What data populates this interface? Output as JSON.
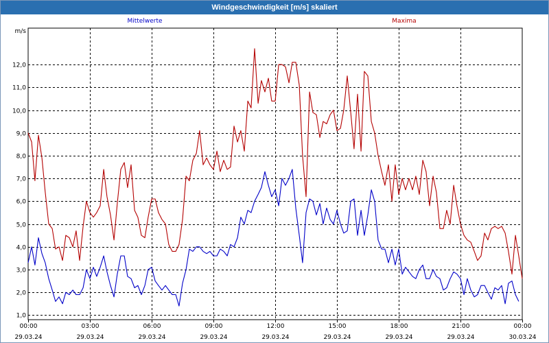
{
  "window": {
    "title": "Windgeschwindigkeit [m/s] skaliert"
  },
  "colors": {
    "titlebar": "#2a6fb0",
    "mean": "#0000c8",
    "max": "#b40000",
    "grid": "#000000"
  },
  "chart_data": {
    "type": "line",
    "yunit": "m/s",
    "ylim": [
      0.8,
      13.6
    ],
    "yticks": [
      1,
      2,
      3,
      4,
      5,
      6,
      7,
      8,
      9,
      10,
      11,
      12
    ],
    "ytick_labels": [
      "1,0",
      "2,0",
      "3,0",
      "4,0",
      "5,0",
      "6,0",
      "7,0",
      "8,0",
      "9,0",
      "10,0",
      "11,0",
      "12,0"
    ],
    "xlim_hours": [
      0,
      24
    ],
    "xticks": [
      {
        "hour": 0,
        "time": "00:00",
        "date": "29.03.24"
      },
      {
        "hour": 3,
        "time": "03:00",
        "date": "29.03.24"
      },
      {
        "hour": 6,
        "time": "06:00",
        "date": "29.03.24"
      },
      {
        "hour": 9,
        "time": "09:00",
        "date": "29.03.24"
      },
      {
        "hour": 12,
        "time": "12:00",
        "date": "29.03.24"
      },
      {
        "hour": 15,
        "time": "15:00",
        "date": "29.03.24"
      },
      {
        "hour": 18,
        "time": "18:00",
        "date": "29.03.24"
      },
      {
        "hour": 21,
        "time": "21:00",
        "date": "29.03.24"
      },
      {
        "hour": 24,
        "time": "00:00",
        "date": "30.03.24"
      }
    ],
    "grid": true,
    "series": [
      {
        "name": "Mittelwerte",
        "color": "#0000c8",
        "points": [
          [
            0,
            3.3
          ],
          [
            0.17,
            4.0
          ],
          [
            0.33,
            3.2
          ],
          [
            0.5,
            4.4
          ],
          [
            0.67,
            3.7
          ],
          [
            0.83,
            3.3
          ],
          [
            1,
            2.6
          ],
          [
            1.17,
            2.1
          ],
          [
            1.33,
            1.6
          ],
          [
            1.5,
            1.8
          ],
          [
            1.67,
            1.5
          ],
          [
            1.83,
            2.0
          ],
          [
            2,
            1.9
          ],
          [
            2.17,
            2.1
          ],
          [
            2.33,
            1.9
          ],
          [
            2.5,
            1.9
          ],
          [
            2.67,
            2.2
          ],
          [
            2.83,
            3.0
          ],
          [
            3,
            2.6
          ],
          [
            3.17,
            3.1
          ],
          [
            3.33,
            2.7
          ],
          [
            3.5,
            3.1
          ],
          [
            3.67,
            3.6
          ],
          [
            3.83,
            2.9
          ],
          [
            4,
            2.3
          ],
          [
            4.17,
            1.8
          ],
          [
            4.33,
            2.8
          ],
          [
            4.5,
            3.6
          ],
          [
            4.67,
            3.6
          ],
          [
            4.83,
            2.7
          ],
          [
            5,
            2.6
          ],
          [
            5.17,
            2.2
          ],
          [
            5.33,
            2.3
          ],
          [
            5.5,
            1.9
          ],
          [
            5.67,
            2.3
          ],
          [
            5.83,
            3.0
          ],
          [
            6,
            3.1
          ],
          [
            6.17,
            2.5
          ],
          [
            6.33,
            2.3
          ],
          [
            6.5,
            2.1
          ],
          [
            6.67,
            2.3
          ],
          [
            6.83,
            2.1
          ],
          [
            7,
            1.9
          ],
          [
            7.17,
            1.9
          ],
          [
            7.33,
            1.4
          ],
          [
            7.5,
            2.4
          ],
          [
            7.67,
            3.0
          ],
          [
            7.83,
            3.9
          ],
          [
            8,
            3.8
          ],
          [
            8.17,
            4.0
          ],
          [
            8.33,
            4.0
          ],
          [
            8.5,
            3.8
          ],
          [
            8.67,
            3.7
          ],
          [
            8.83,
            3.8
          ],
          [
            9,
            3.6
          ],
          [
            9.17,
            3.6
          ],
          [
            9.33,
            3.9
          ],
          [
            9.5,
            3.8
          ],
          [
            9.67,
            3.6
          ],
          [
            9.83,
            4.1
          ],
          [
            10,
            4.0
          ],
          [
            10.17,
            4.4
          ],
          [
            10.33,
            5.3
          ],
          [
            10.5,
            5.0
          ],
          [
            10.67,
            5.6
          ],
          [
            10.83,
            5.5
          ],
          [
            11,
            6.0
          ],
          [
            11.17,
            6.3
          ],
          [
            11.33,
            6.6
          ],
          [
            11.5,
            7.3
          ],
          [
            11.67,
            6.7
          ],
          [
            11.83,
            6.2
          ],
          [
            12,
            6.5
          ],
          [
            12.17,
            5.8
          ],
          [
            12.33,
            7.0
          ],
          [
            12.5,
            6.7
          ],
          [
            12.67,
            7.0
          ],
          [
            12.83,
            7.4
          ],
          [
            13,
            5.7
          ],
          [
            13.17,
            4.5
          ],
          [
            13.33,
            3.3
          ],
          [
            13.5,
            5.5
          ],
          [
            13.67,
            6.1
          ],
          [
            13.83,
            6.0
          ],
          [
            14,
            5.4
          ],
          [
            14.17,
            5.9
          ],
          [
            14.33,
            5.0
          ],
          [
            14.5,
            5.7
          ],
          [
            14.67,
            5.2
          ],
          [
            14.83,
            5.0
          ],
          [
            15,
            5.6
          ],
          [
            15.17,
            5.0
          ],
          [
            15.33,
            4.6
          ],
          [
            15.5,
            4.7
          ],
          [
            15.67,
            6.0
          ],
          [
            15.83,
            6.1
          ],
          [
            16,
            4.5
          ],
          [
            16.17,
            5.6
          ],
          [
            16.33,
            4.5
          ],
          [
            16.5,
            5.4
          ],
          [
            16.67,
            6.5
          ],
          [
            16.83,
            6.0
          ],
          [
            17,
            4.3
          ],
          [
            17.17,
            3.9
          ],
          [
            17.33,
            3.9
          ],
          [
            17.5,
            3.3
          ],
          [
            17.67,
            3.9
          ],
          [
            17.83,
            3.2
          ],
          [
            18,
            3.9
          ],
          [
            18.17,
            2.8
          ],
          [
            18.33,
            3.1
          ],
          [
            18.5,
            2.9
          ],
          [
            18.67,
            2.7
          ],
          [
            18.83,
            2.6
          ],
          [
            19,
            3.0
          ],
          [
            19.17,
            3.2
          ],
          [
            19.33,
            2.6
          ],
          [
            19.5,
            2.6
          ],
          [
            19.67,
            3.0
          ],
          [
            19.83,
            2.7
          ],
          [
            20,
            2.6
          ],
          [
            20.17,
            2.1
          ],
          [
            20.33,
            2.2
          ],
          [
            20.5,
            2.6
          ],
          [
            20.67,
            2.9
          ],
          [
            20.83,
            2.8
          ],
          [
            21,
            2.6
          ],
          [
            21.17,
            1.9
          ],
          [
            21.33,
            2.6
          ],
          [
            21.5,
            2.1
          ],
          [
            21.67,
            1.8
          ],
          [
            21.83,
            1.9
          ],
          [
            22,
            2.3
          ],
          [
            22.17,
            2.3
          ],
          [
            22.33,
            2.0
          ],
          [
            22.5,
            1.7
          ],
          [
            22.67,
            2.2
          ],
          [
            22.83,
            2.1
          ],
          [
            23,
            2.3
          ],
          [
            23.17,
            1.5
          ],
          [
            23.33,
            2.4
          ],
          [
            23.5,
            2.5
          ],
          [
            23.67,
            1.9
          ],
          [
            23.83,
            1.6
          ]
        ]
      },
      {
        "name": "Maxima",
        "color": "#b40000",
        "points": [
          [
            0,
            9.0
          ],
          [
            0.17,
            8.6
          ],
          [
            0.33,
            6.9
          ],
          [
            0.5,
            8.9
          ],
          [
            0.67,
            7.9
          ],
          [
            0.83,
            6.4
          ],
          [
            1,
            5.0
          ],
          [
            1.17,
            4.8
          ],
          [
            1.33,
            3.9
          ],
          [
            1.5,
            4.0
          ],
          [
            1.67,
            3.4
          ],
          [
            1.83,
            4.5
          ],
          [
            2,
            4.4
          ],
          [
            2.17,
            4.0
          ],
          [
            2.33,
            4.7
          ],
          [
            2.5,
            3.4
          ],
          [
            2.67,
            4.9
          ],
          [
            2.83,
            6.0
          ],
          [
            3,
            5.5
          ],
          [
            3.17,
            5.3
          ],
          [
            3.33,
            5.5
          ],
          [
            3.5,
            5.8
          ],
          [
            3.67,
            7.4
          ],
          [
            3.83,
            6.2
          ],
          [
            4,
            5.4
          ],
          [
            4.17,
            4.3
          ],
          [
            4.33,
            5.9
          ],
          [
            4.5,
            7.4
          ],
          [
            4.67,
            7.7
          ],
          [
            4.83,
            6.6
          ],
          [
            5,
            7.6
          ],
          [
            5.17,
            5.6
          ],
          [
            5.33,
            5.3
          ],
          [
            5.5,
            4.5
          ],
          [
            5.67,
            4.4
          ],
          [
            5.83,
            5.3
          ],
          [
            6,
            6.1
          ],
          [
            6.17,
            6.1
          ],
          [
            6.33,
            5.5
          ],
          [
            6.5,
            5.2
          ],
          [
            6.67,
            5.0
          ],
          [
            6.83,
            4.1
          ],
          [
            7,
            3.8
          ],
          [
            7.17,
            3.8
          ],
          [
            7.33,
            4.1
          ],
          [
            7.5,
            5.2
          ],
          [
            7.67,
            7.1
          ],
          [
            7.83,
            6.9
          ],
          [
            8,
            7.8
          ],
          [
            8.17,
            8.1
          ],
          [
            8.33,
            9.1
          ],
          [
            8.5,
            7.6
          ],
          [
            8.67,
            7.9
          ],
          [
            8.83,
            7.6
          ],
          [
            9,
            7.4
          ],
          [
            9.17,
            8.2
          ],
          [
            9.33,
            7.3
          ],
          [
            9.5,
            7.8
          ],
          [
            9.67,
            7.4
          ],
          [
            9.83,
            7.5
          ],
          [
            10,
            9.3
          ],
          [
            10.17,
            8.6
          ],
          [
            10.33,
            9.1
          ],
          [
            10.5,
            8.2
          ],
          [
            10.67,
            10.4
          ],
          [
            10.83,
            10.1
          ],
          [
            11,
            12.7
          ],
          [
            11.17,
            10.3
          ],
          [
            11.33,
            11.3
          ],
          [
            11.5,
            10.8
          ],
          [
            11.67,
            11.4
          ],
          [
            11.83,
            10.4
          ],
          [
            12,
            10.4
          ],
          [
            12.17,
            12.0
          ],
          [
            12.33,
            12.0
          ],
          [
            12.5,
            11.9
          ],
          [
            12.67,
            11.2
          ],
          [
            12.83,
            12.1
          ],
          [
            13,
            12.1
          ],
          [
            13.17,
            11.1
          ],
          [
            13.33,
            8.0
          ],
          [
            13.5,
            6.2
          ],
          [
            13.67,
            10.8
          ],
          [
            13.83,
            9.9
          ],
          [
            14,
            9.8
          ],
          [
            14.17,
            8.8
          ],
          [
            14.33,
            9.5
          ],
          [
            14.5,
            9.4
          ],
          [
            14.67,
            9.8
          ],
          [
            14.83,
            10.0
          ],
          [
            15,
            9.1
          ],
          [
            15.17,
            9.2
          ],
          [
            15.33,
            10.0
          ],
          [
            15.5,
            11.5
          ],
          [
            15.67,
            9.9
          ],
          [
            15.83,
            8.3
          ],
          [
            16,
            10.7
          ],
          [
            16.17,
            8.2
          ],
          [
            16.33,
            11.7
          ],
          [
            16.5,
            11.5
          ],
          [
            16.67,
            9.5
          ],
          [
            16.83,
            9.0
          ],
          [
            17,
            8.0
          ],
          [
            17.17,
            7.3
          ],
          [
            17.33,
            6.7
          ],
          [
            17.5,
            7.6
          ],
          [
            17.67,
            6.0
          ],
          [
            17.83,
            7.6
          ],
          [
            18,
            6.3
          ],
          [
            18.17,
            7.0
          ],
          [
            18.33,
            6.5
          ],
          [
            18.5,
            7.0
          ],
          [
            18.67,
            6.5
          ],
          [
            18.83,
            7.1
          ],
          [
            19,
            6.3
          ],
          [
            19.17,
            7.8
          ],
          [
            19.33,
            7.3
          ],
          [
            19.5,
            5.8
          ],
          [
            19.67,
            7.1
          ],
          [
            19.83,
            6.4
          ],
          [
            20,
            4.8
          ],
          [
            20.17,
            4.8
          ],
          [
            20.33,
            5.6
          ],
          [
            20.5,
            5.0
          ],
          [
            20.67,
            6.7
          ],
          [
            20.83,
            5.8
          ],
          [
            21,
            5.0
          ],
          [
            21.17,
            4.5
          ],
          [
            21.33,
            4.3
          ],
          [
            21.5,
            4.2
          ],
          [
            21.67,
            3.8
          ],
          [
            21.83,
            3.4
          ],
          [
            22,
            3.6
          ],
          [
            22.17,
            4.6
          ],
          [
            22.33,
            4.3
          ],
          [
            22.5,
            4.8
          ],
          [
            22.67,
            4.9
          ],
          [
            22.83,
            4.8
          ],
          [
            23,
            4.9
          ],
          [
            23.17,
            4.6
          ],
          [
            23.33,
            3.8
          ],
          [
            23.5,
            2.8
          ],
          [
            23.67,
            4.5
          ],
          [
            23.83,
            3.6
          ],
          [
            24,
            2.6
          ]
        ]
      }
    ]
  }
}
